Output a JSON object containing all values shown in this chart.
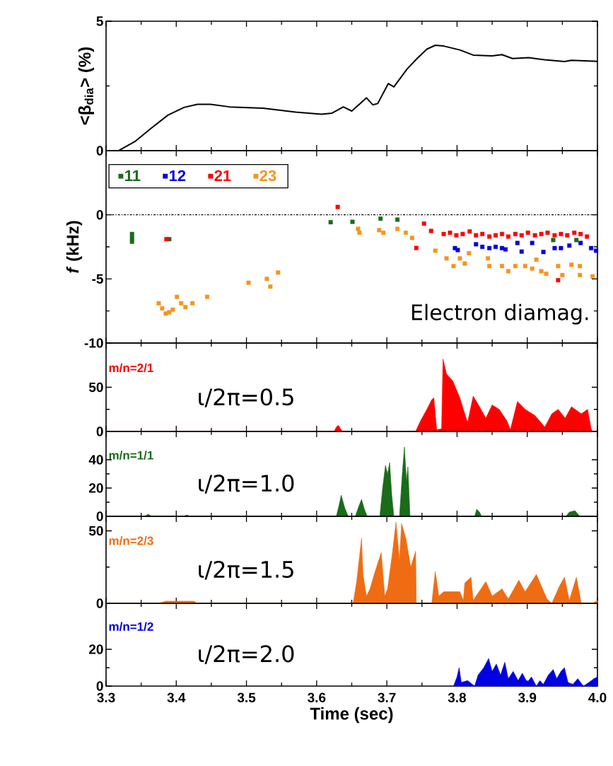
{
  "chart_data": [
    {
      "type": "line",
      "ylabel": "<β$_{dia}$> (%)",
      "xlim": [
        3.3,
        4.0
      ],
      "ylim": [
        0,
        5
      ],
      "xticks": [
        3.3,
        3.4,
        3.5,
        3.6,
        3.7,
        3.8,
        3.9,
        4.0
      ],
      "yticks": [
        0,
        5
      ],
      "tick_labels": "y",
      "series": [
        {
          "color": "#000000",
          "x": [
            3.3,
            3.318,
            3.341,
            3.365,
            3.388,
            3.411,
            3.43,
            3.449,
            3.476,
            3.524,
            3.57,
            3.607,
            3.622,
            3.638,
            3.65,
            3.671,
            3.68,
            3.687,
            3.702,
            3.71,
            3.729,
            3.743,
            3.757,
            3.769,
            3.781,
            3.804,
            3.823,
            3.85,
            3.864,
            3.879,
            3.902,
            3.925,
            3.953,
            3.963,
            4.0
          ],
          "values": [
            0,
            0,
            0.35,
            0.88,
            1.37,
            1.67,
            1.79,
            1.79,
            1.69,
            1.64,
            1.49,
            1.41,
            1.45,
            1.69,
            1.53,
            2.04,
            1.77,
            1.82,
            2.59,
            2.46,
            3.16,
            3.56,
            3.92,
            4.07,
            4.04,
            3.89,
            3.69,
            3.66,
            3.71,
            3.56,
            3.59,
            3.51,
            3.44,
            3.49,
            3.45
          ]
        }
      ]
    },
    {
      "type": "scatter",
      "ylabel": "*f* (kHz)",
      "xlim": [
        3.3,
        4.0
      ],
      "ylim": [
        -10,
        5
      ],
      "xticks": [
        3.3,
        3.4,
        3.5,
        3.6,
        3.7,
        3.8,
        3.9,
        4.0
      ],
      "yticks": [
        -10,
        -5,
        0
      ],
      "tick_labels": "y",
      "marker": "square",
      "legend": "top left",
      "ref_lines": [
        {
          "axis": "y",
          "value": 0,
          "line_style": "dashdot"
        }
      ],
      "annotations": [
        "Electron diamag."
      ],
      "series": [
        {
          "name": "11",
          "color": "#1a6b1a",
          "x": [
            3.337,
            3.337,
            3.337,
            3.39,
            3.62,
            3.651,
            3.691,
            3.715,
            3.937,
            3.97
          ],
          "values": [
            -1.5,
            -1.8,
            -2.1,
            -1.9,
            -0.58,
            -0.55,
            -0.3,
            -0.38,
            -1.97,
            -1.97
          ]
        },
        {
          "name": "12",
          "color": "#0000e0",
          "x": [
            3.797,
            3.801,
            3.827,
            3.836,
            3.846,
            3.855,
            3.864,
            3.869,
            3.886,
            3.892,
            3.907,
            3.923,
            3.939,
            3.948,
            3.96,
            3.976,
            3.991,
            3.998
          ],
          "values": [
            -2.6,
            -2.75,
            -2.3,
            -2.5,
            -2.6,
            -2.5,
            -2.6,
            -2.7,
            -2.2,
            -2.87,
            -2.2,
            -2.9,
            -2.6,
            -2.6,
            -2.4,
            -2.2,
            -2.6,
            -2.8
          ]
        },
        {
          "name": "21",
          "color": "#ff0000",
          "x": [
            3.386,
            3.63,
            3.742,
            3.753,
            3.763,
            3.781,
            3.79,
            3.799,
            3.808,
            3.818,
            3.827,
            3.836,
            3.846,
            3.855,
            3.864,
            3.873,
            3.883,
            3.892,
            3.901,
            3.911,
            3.92,
            3.929,
            3.939,
            3.944,
            3.948,
            3.957,
            3.967,
            3.976,
            3.985
          ],
          "values": [
            -1.9,
            0.61,
            -2.59,
            -0.69,
            -1.26,
            -1.5,
            -1.4,
            -1.6,
            -1.5,
            -1.3,
            -1.6,
            -1.5,
            -1.7,
            -1.6,
            -1.5,
            -1.7,
            -1.5,
            -1.6,
            -1.4,
            -1.6,
            -1.5,
            -1.4,
            -1.6,
            -5.1,
            -1.5,
            -1.6,
            -1.4,
            -1.5,
            -1.7
          ]
        },
        {
          "name": "23",
          "color": "#f7941d",
          "x": [
            3.375,
            3.38,
            3.385,
            3.39,
            3.395,
            3.401,
            3.407,
            3.413,
            3.423,
            3.444,
            3.503,
            3.529,
            3.534,
            3.545,
            3.659,
            3.661,
            3.689,
            3.695,
            3.715,
            3.727,
            3.736,
            3.769,
            3.785,
            3.795,
            3.804,
            3.811,
            3.817,
            3.844,
            3.846,
            3.864,
            3.873,
            3.883,
            3.897,
            3.907,
            3.913,
            3.92,
            3.927,
            3.944,
            3.95,
            3.963,
            3.975,
            3.975,
            3.993
          ],
          "values": [
            -6.9,
            -7.3,
            -7.7,
            -7.6,
            -7.4,
            -6.4,
            -6.9,
            -7.2,
            -6.9,
            -6.4,
            -5.3,
            -5.0,
            -5.6,
            -4.5,
            -1.1,
            -1.4,
            -1.2,
            -1.4,
            -1.1,
            -1.4,
            -1.8,
            -2.8,
            -3.4,
            -4.0,
            -3.4,
            -3.8,
            -3.0,
            -3.4,
            -4.0,
            -4.0,
            -4.4,
            -4.0,
            -4.0,
            -4.2,
            -3.5,
            -4.4,
            -4.6,
            -4.0,
            -4.7,
            -3.9,
            -4.0,
            -4.7,
            -4.8
          ]
        }
      ]
    },
    {
      "type": "area",
      "xlim": [
        3.3,
        4.0
      ],
      "ylim": [
        0,
        100
      ],
      "xticks": [
        3.3,
        3.4,
        3.5,
        3.6,
        3.7,
        3.8,
        3.9,
        4.0
      ],
      "yticks": [
        0,
        50
      ],
      "tick_labels": "y",
      "annotations": [
        "m/n=2/1",
        "ι/2π=0.5"
      ],
      "series": [
        {
          "color": "#ff0000",
          "x": [
            3.3,
            3.625,
            3.628,
            3.631,
            3.634,
            3.637,
            3.741,
            3.748,
            3.757,
            3.764,
            3.767,
            3.771,
            3.778,
            3.78,
            3.785,
            3.794,
            3.804,
            3.811,
            3.815,
            3.823,
            3.832,
            3.841,
            3.85,
            3.86,
            3.871,
            3.876,
            3.886,
            3.897,
            3.911,
            3.925,
            3.935,
            3.944,
            3.954,
            3.963,
            3.977,
            3.986,
            3.991,
            3.993
          ],
          "values": [
            0,
            0,
            5,
            7,
            3,
            0,
            0,
            12,
            25,
            36,
            38,
            2,
            3,
            82,
            65,
            57,
            38,
            20,
            10,
            40,
            28,
            15,
            30,
            25,
            12,
            2,
            34,
            25,
            18,
            5,
            20,
            25,
            15,
            28,
            20,
            25,
            3,
            0
          ]
        }
      ]
    },
    {
      "type": "area",
      "xlim": [
        3.3,
        4.0
      ],
      "ylim": [
        0,
        60
      ],
      "xticks": [
        3.3,
        3.4,
        3.5,
        3.6,
        3.7,
        3.8,
        3.9,
        4.0
      ],
      "yticks": [
        0,
        20,
        40
      ],
      "tick_labels": "y",
      "annotations": [
        "m/n=1/1",
        "ι/2π=1.0"
      ],
      "series": [
        {
          "color": "#1a6b1a",
          "x": [
            3.3,
            3.355,
            3.36,
            3.365,
            3.41,
            3.415,
            3.42,
            3.628,
            3.632,
            3.635,
            3.64,
            3.645,
            3.655,
            3.66,
            3.664,
            3.668,
            3.672,
            3.69,
            3.694,
            3.698,
            3.701,
            3.704,
            3.707,
            3.71,
            3.718,
            3.722,
            3.725,
            3.728,
            3.73,
            3.733,
            3.825,
            3.828,
            3.832,
            3.835,
            3.955,
            3.96,
            3.968,
            3.975,
            4.0
          ],
          "values": [
            0,
            0,
            1.5,
            0,
            0,
            1,
            0,
            0,
            8,
            15,
            6,
            0,
            0,
            7,
            12,
            5,
            0,
            0,
            20,
            36,
            30,
            38,
            15,
            0,
            0,
            30,
            49,
            25,
            35,
            0,
            0,
            5,
            3,
            0,
            0,
            3,
            4,
            0,
            0
          ]
        }
      ]
    },
    {
      "type": "area",
      "xlim": [
        3.3,
        4.0
      ],
      "ylim": [
        0,
        60
      ],
      "xticks": [
        3.3,
        3.4,
        3.5,
        3.6,
        3.7,
        3.8,
        3.9,
        4.0
      ],
      "yticks": [
        0,
        50
      ],
      "tick_labels": "y",
      "annotations": [
        "m/n=2/3",
        "ι/2π=1.5"
      ],
      "series": [
        {
          "color": "#f06c12",
          "x": [
            3.3,
            3.375,
            3.385,
            3.425,
            3.43,
            3.652,
            3.657,
            3.664,
            3.666,
            3.671,
            3.676,
            3.682,
            3.692,
            3.697,
            3.701,
            3.708,
            3.713,
            3.718,
            3.721,
            3.727,
            3.734,
            3.741,
            3.742,
            3.764,
            3.769,
            3.774,
            3.781,
            3.804,
            3.809,
            3.811,
            3.82,
            3.823,
            3.841,
            3.85,
            3.864,
            3.873,
            3.888,
            3.897,
            3.913,
            3.928,
            3.935,
            3.946,
            3.953,
            3.96,
            3.97,
            3.977,
            3.993,
            4.0
          ],
          "values": [
            0,
            0,
            1.5,
            1.5,
            0,
            0,
            15,
            45,
            20,
            5,
            10,
            20,
            35,
            5,
            10,
            35,
            56,
            30,
            55,
            45,
            25,
            36,
            0,
            0,
            22,
            5,
            8,
            8,
            2,
            14,
            18,
            2,
            15,
            5,
            10,
            3,
            16,
            8,
            20,
            3,
            0,
            12,
            18,
            2,
            18,
            0,
            0,
            2
          ]
        }
      ]
    },
    {
      "type": "area",
      "xlabel": "Time (sec)",
      "xlim": [
        3.3,
        4.0
      ],
      "ylim": [
        0,
        45
      ],
      "xticks": [
        3.3,
        3.4,
        3.5,
        3.6,
        3.7,
        3.8,
        3.9,
        {
          "value": 4.0,
          "label": "4.0"
        }
      ],
      "yticks": [
        0,
        20
      ],
      "annotations": [
        "m/n=1/2",
        "ι/2π=2.0"
      ],
      "series": [
        {
          "color": "#0000e0",
          "x": [
            3.795,
            3.8,
            3.803,
            3.806,
            3.815,
            3.825,
            3.83,
            3.838,
            3.845,
            3.85,
            3.856,
            3.862,
            3.868,
            3.873,
            3.88,
            3.887,
            3.893,
            3.9,
            3.906,
            3.913,
            3.918,
            3.923,
            3.93,
            3.937,
            3.942,
            3.948,
            3.953,
            3.958,
            3.965,
            3.972,
            3.98,
            3.988,
            3.995,
            4.0
          ],
          "values": [
            0,
            5,
            10,
            2,
            3,
            0,
            6,
            10,
            15,
            8,
            12,
            6,
            13,
            4,
            8,
            3,
            7,
            2,
            5,
            0,
            3,
            1,
            6,
            9,
            4,
            8,
            10,
            2,
            1,
            4,
            0,
            2,
            4,
            5
          ]
        }
      ]
    }
  ]
}
